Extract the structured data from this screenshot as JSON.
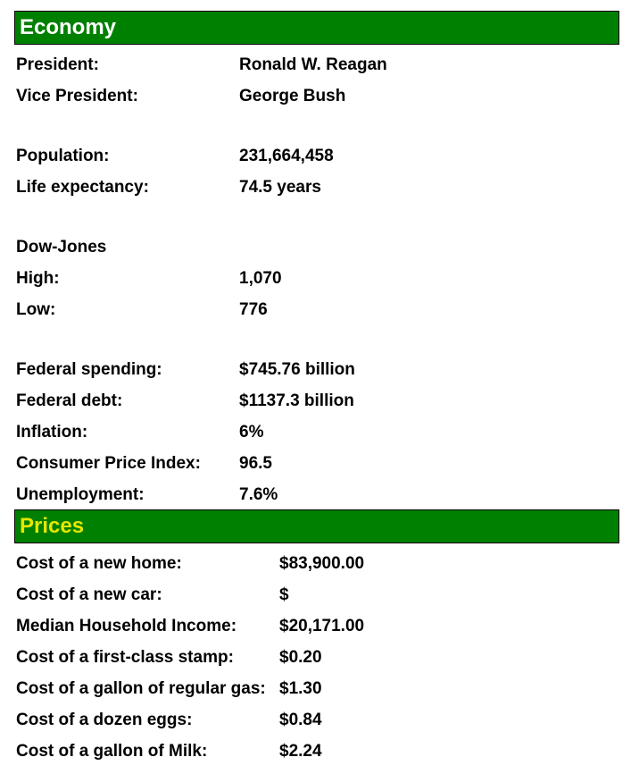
{
  "colors": {
    "header_bg": "#008000",
    "economy_header_text": "#ffffff",
    "prices_header_text": "#e6e600"
  },
  "economy": {
    "title": "Economy",
    "rows": [
      {
        "label": "President:",
        "value": "Ronald W. Reagan"
      },
      {
        "label": "Vice President:",
        "value": "George Bush"
      },
      {
        "label": "Population:",
        "value": "231,664,458"
      },
      {
        "label": "Life expectancy:",
        "value": "74.5 years"
      },
      {
        "label": "Dow-Jones",
        "value": ""
      },
      {
        "label": "High:",
        "value": "1,070"
      },
      {
        "label": "Low:",
        "value": "776"
      },
      {
        "label": "Federal spending:",
        "value": "$745.76 billion"
      },
      {
        "label": "Federal debt:",
        "value": "$1137.3 billion"
      },
      {
        "label": "Inflation:",
        "value": "6%"
      },
      {
        "label": "Consumer Price Index:",
        "value": "96.5"
      },
      {
        "label": "Unemployment:",
        "value": "7.6%"
      }
    ]
  },
  "prices": {
    "title": "Prices",
    "rows": [
      {
        "label": "Cost of a new home:",
        "value": "$83,900.00"
      },
      {
        "label": "Cost of a new car:",
        "value": "$"
      },
      {
        "label": "Median Household Income:",
        "value": "$20,171.00"
      },
      {
        "label": "Cost of a first-class stamp:",
        "value": "$0.20"
      },
      {
        "label": "Cost of a gallon of regular gas:",
        "value": "$1.30"
      },
      {
        "label": "Cost of a dozen eggs:",
        "value": "$0.84"
      },
      {
        "label": "Cost of a gallon of Milk:",
        "value": "$2.24"
      }
    ]
  }
}
